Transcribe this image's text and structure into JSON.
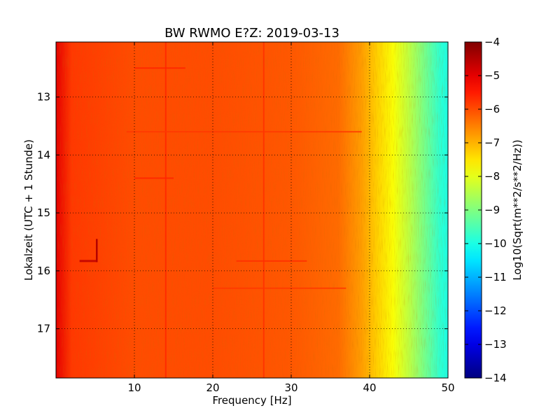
{
  "chart_data": {
    "type": "heatmap",
    "title": "BW RWMO E?Z: 2019-03-13",
    "xlabel": "Frequency [Hz]",
    "ylabel": "Lokalzeit (UTC + 1 Stunde)",
    "xlim": [
      0,
      50
    ],
    "ylim": [
      12.05,
      17.85
    ],
    "y_inverted": true,
    "x_ticks": [
      10,
      20,
      30,
      40,
      50
    ],
    "y_ticks": [
      13,
      14,
      15,
      16,
      17
    ],
    "grid": true,
    "colormap": "jet",
    "colorbar": {
      "label": "Log10(Sqrt(m**2/s**2/Hz))",
      "range": [
        -14,
        -4
      ],
      "ticks": [
        -4,
        -5,
        -6,
        -7,
        -8,
        -9,
        -10,
        -11,
        -12,
        -13,
        -14
      ]
    },
    "spectral_profile": [
      {
        "frequency_hz": 0,
        "value": -5.0
      },
      {
        "frequency_hz": 2,
        "value": -5.8
      },
      {
        "frequency_hz": 10,
        "value": -6.0
      },
      {
        "frequency_hz": 20,
        "value": -6.0
      },
      {
        "frequency_hz": 30,
        "value": -6.1
      },
      {
        "frequency_hz": 36,
        "value": -6.3
      },
      {
        "frequency_hz": 39,
        "value": -6.8
      },
      {
        "frequency_hz": 41,
        "value": -7.3
      },
      {
        "frequency_hz": 43,
        "value": -7.8
      },
      {
        "frequency_hz": 45,
        "value": -8.4
      },
      {
        "frequency_hz": 47,
        "value": -9.1
      },
      {
        "frequency_hz": 49,
        "value": -9.8
      },
      {
        "frequency_hz": 50,
        "value": -10.0
      }
    ],
    "features": [
      {
        "type": "vertical_line",
        "frequency_hz": 14.0,
        "value": -5.6
      },
      {
        "type": "vertical_line",
        "frequency_hz": 26.5,
        "value": -5.7
      },
      {
        "type": "vertical_segment",
        "frequency_hz": 5.2,
        "time_start": 15.45,
        "time_end": 15.85,
        "value": -4.5
      },
      {
        "type": "horizontal_segment",
        "time": 15.83,
        "freq_start": 3.0,
        "freq_end": 5.3,
        "value": -4.6
      },
      {
        "type": "horizontal_line",
        "time": 12.5,
        "freq_start": 10,
        "freq_end": 16.5,
        "value": -5.6
      },
      {
        "type": "horizontal_line",
        "time": 14.4,
        "freq_start": 10,
        "freq_end": 15,
        "value": -5.6
      },
      {
        "type": "horizontal_line",
        "time": 15.83,
        "freq_start": 23,
        "freq_end": 32,
        "value": -5.7
      },
      {
        "type": "horizontal_line",
        "time": 16.3,
        "freq_start": 20,
        "freq_end": 37,
        "value": -5.8
      },
      {
        "type": "horizontal_line",
        "time": 13.6,
        "freq_start": 9,
        "freq_end": 39,
        "value": -5.8
      }
    ]
  }
}
